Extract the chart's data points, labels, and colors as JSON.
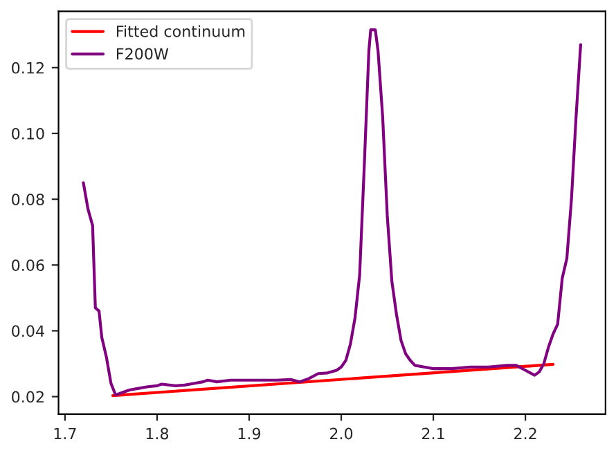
{
  "chart_data": {
    "type": "line",
    "series": [
      {
        "name": "Fitted continuum",
        "color": "#ff0000",
        "x": [
          1.752,
          2.23
        ],
        "values": [
          0.0203,
          0.0298
        ]
      },
      {
        "name": "F200W",
        "color": "#800080",
        "x": [
          1.72,
          1.725,
          1.73,
          1.733,
          1.737,
          1.74,
          1.745,
          1.75,
          1.755,
          1.76,
          1.77,
          1.78,
          1.79,
          1.8,
          1.805,
          1.82,
          1.83,
          1.84,
          1.85,
          1.855,
          1.865,
          1.88,
          1.9,
          1.93,
          1.945,
          1.955,
          1.965,
          1.975,
          1.985,
          1.995,
          2.0,
          2.005,
          2.01,
          2.015,
          2.02,
          2.025,
          2.03,
          2.032,
          2.037,
          2.04,
          2.045,
          2.05,
          2.055,
          2.06,
          2.065,
          2.07,
          2.075,
          2.08,
          2.09,
          2.1,
          2.11,
          2.12,
          2.14,
          2.16,
          2.18,
          2.19,
          2.2,
          2.21,
          2.215,
          2.22,
          2.225,
          2.23,
          2.235,
          2.24,
          2.245,
          2.25,
          2.255,
          2.26
        ],
        "values": [
          0.085,
          0.077,
          0.072,
          0.047,
          0.046,
          0.038,
          0.032,
          0.024,
          0.0205,
          0.021,
          0.022,
          0.0225,
          0.023,
          0.0233,
          0.0238,
          0.0233,
          0.0235,
          0.024,
          0.0245,
          0.025,
          0.0245,
          0.025,
          0.025,
          0.025,
          0.0252,
          0.0245,
          0.0255,
          0.027,
          0.0272,
          0.028,
          0.029,
          0.031,
          0.036,
          0.044,
          0.057,
          0.09,
          0.125,
          0.1315,
          0.1315,
          0.125,
          0.105,
          0.075,
          0.055,
          0.045,
          0.037,
          0.033,
          0.031,
          0.0295,
          0.029,
          0.0285,
          0.0285,
          0.0285,
          0.029,
          0.029,
          0.0295,
          0.0295,
          0.028,
          0.0265,
          0.0275,
          0.03,
          0.035,
          0.039,
          0.042,
          0.056,
          0.062,
          0.08,
          0.105,
          0.127
        ]
      }
    ],
    "xlim": [
      1.693,
      2.287
    ],
    "ylim": [
      0.0147,
      0.1371
    ],
    "xticks": [
      {
        "value": 1.7,
        "label": "1.7"
      },
      {
        "value": 1.8,
        "label": "1.8"
      },
      {
        "value": 1.9,
        "label": "1.9"
      },
      {
        "value": 2.0,
        "label": "2.0"
      },
      {
        "value": 2.1,
        "label": "2.1"
      },
      {
        "value": 2.2,
        "label": "2.2"
      }
    ],
    "yticks": [
      {
        "value": 0.02,
        "label": "0.02"
      },
      {
        "value": 0.04,
        "label": "0.04"
      },
      {
        "value": 0.06,
        "label": "0.06"
      },
      {
        "value": 0.08,
        "label": "0.08"
      },
      {
        "value": 0.1,
        "label": "0.10"
      },
      {
        "value": 0.12,
        "label": "0.12"
      }
    ],
    "grid": false,
    "legend": "top left",
    "marker": "none",
    "line_style": "solid"
  }
}
